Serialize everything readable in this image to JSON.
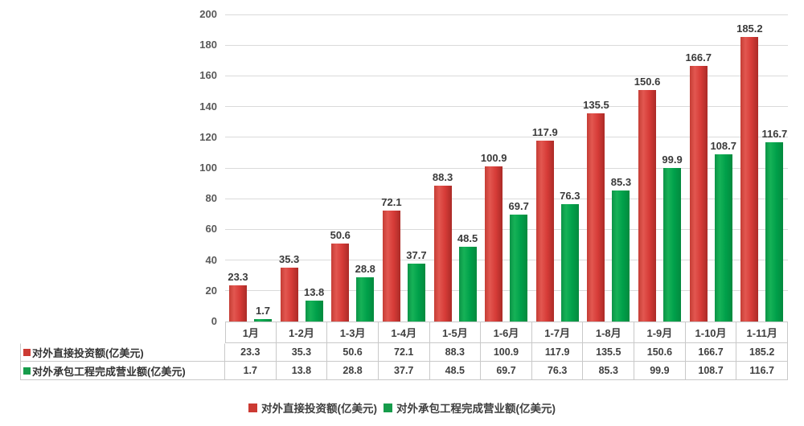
{
  "chart_data": {
    "type": "bar",
    "title": "",
    "categories": [
      "1月",
      "1-2月",
      "1-3月",
      "1-4月",
      "1-5月",
      "1-6月",
      "1-7月",
      "1-8月",
      "1-9月",
      "1-10月",
      "1-11月"
    ],
    "series": [
      {
        "name": "对外直接投资额(亿美元)",
        "color": "#cc3a33",
        "values": [
          23.3,
          35.3,
          50.6,
          72.1,
          88.3,
          100.9,
          117.9,
          135.5,
          150.6,
          166.7,
          185.2
        ]
      },
      {
        "name": "对外承包工程完成营业额(亿美元)",
        "color": "#169c4b",
        "values": [
          1.7,
          13.8,
          28.8,
          37.7,
          48.5,
          69.7,
          76.3,
          85.3,
          99.9,
          108.7,
          116.7
        ]
      }
    ],
    "ylim": [
      0,
      200
    ],
    "yticks": [
      0,
      20,
      40,
      60,
      80,
      100,
      120,
      140,
      160,
      180,
      200
    ],
    "grid": true,
    "value_labels_shown": true,
    "data_table_shown": true,
    "legend_position": "bottom",
    "xlabel": "",
    "ylabel": ""
  }
}
